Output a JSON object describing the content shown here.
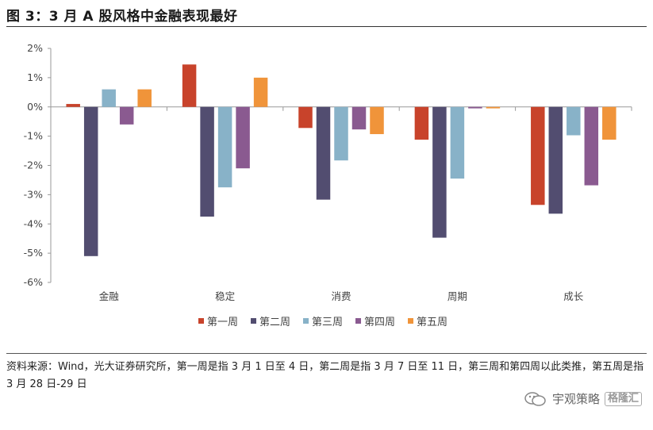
{
  "title": "图 3：3 月 A 股风格中金融表现最好",
  "source_note": "资料来源：Wind，光大证券研究所，第一周是指 3 月 1 日至 4 日，第二周是指 3 月 7 日至 11 日，第三周和第四周以此类推，第五周是指 3 月 28 日-29 日",
  "watermark": {
    "text": "宇观策略",
    "logo_text": "格隆汇",
    "icon": "wechat-icon"
  },
  "chart_data": {
    "type": "bar",
    "categories": [
      "金融",
      "稳定",
      "消费",
      "周期",
      "成长"
    ],
    "series": [
      {
        "name": "第一周",
        "color": "#C8432B",
        "values": [
          0.1,
          1.45,
          -0.72,
          -1.12,
          -3.35
        ]
      },
      {
        "name": "第二周",
        "color": "#524D70",
        "values": [
          -5.1,
          -3.75,
          -3.17,
          -4.47,
          -3.65
        ]
      },
      {
        "name": "第三周",
        "color": "#88B2C8",
        "values": [
          0.6,
          -2.75,
          -1.83,
          -2.45,
          -0.97
        ]
      },
      {
        "name": "第四周",
        "color": "#8A5A90",
        "values": [
          -0.6,
          -2.1,
          -0.77,
          -0.05,
          -2.68
        ]
      },
      {
        "name": "第五周",
        "color": "#F0943A",
        "values": [
          0.6,
          1.0,
          -0.93,
          -0.05,
          -1.12
        ]
      }
    ],
    "ylim": [
      -6,
      2
    ],
    "yticks": [
      2,
      1,
      0,
      -1,
      -2,
      -3,
      -4,
      -5,
      -6
    ],
    "ytick_labels": [
      "2%",
      "1%",
      "0%",
      "-1%",
      "-2%",
      "-3%",
      "-4%",
      "-5%",
      "-6%"
    ],
    "grid": false,
    "legend_position": "bottom"
  }
}
